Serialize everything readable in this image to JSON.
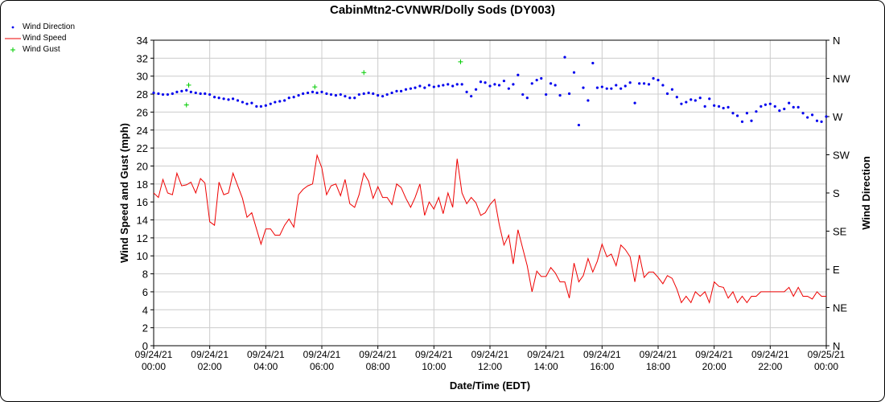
{
  "chart_data": {
    "type": "line",
    "title": "CabinMtn2-CVNWR/Dolly Sods (DY003)",
    "xlabel": "Date/Time (EDT)",
    "ylabel": "Wind Speed and Gust (mph)",
    "y2label": "Wind Direction",
    "xlim_hours": [
      0,
      24
    ],
    "x_ticks": [
      {
        "h": 0,
        "date": "09/24/21",
        "time": "00:00"
      },
      {
        "h": 2,
        "date": "09/24/21",
        "time": "02:00"
      },
      {
        "h": 4,
        "date": "09/24/21",
        "time": "04:00"
      },
      {
        "h": 6,
        "date": "09/24/21",
        "time": "06:00"
      },
      {
        "h": 8,
        "date": "09/24/21",
        "time": "08:00"
      },
      {
        "h": 10,
        "date": "09/24/21",
        "time": "10:00"
      },
      {
        "h": 12,
        "date": "09/24/21",
        "time": "12:00"
      },
      {
        "h": 14,
        "date": "09/24/21",
        "time": "14:00"
      },
      {
        "h": 16,
        "date": "09/24/21",
        "time": "16:00"
      },
      {
        "h": 18,
        "date": "09/24/21",
        "time": "18:00"
      },
      {
        "h": 20,
        "date": "09/24/21",
        "time": "20:00"
      },
      {
        "h": 22,
        "date": "09/24/21",
        "time": "22:00"
      },
      {
        "h": 24,
        "date": "09/25/21",
        "time": "00:00"
      }
    ],
    "ylim": [
      0,
      34
    ],
    "y_ticks": [
      0,
      2,
      4,
      6,
      8,
      10,
      12,
      14,
      16,
      18,
      20,
      22,
      24,
      26,
      28,
      30,
      32,
      34
    ],
    "y2_ticks": [
      {
        "label": "N",
        "deg": 0
      },
      {
        "label": "NE",
        "deg": 45
      },
      {
        "label": "E",
        "deg": 90
      },
      {
        "label": "SE",
        "deg": 135
      },
      {
        "label": "S",
        "deg": 180
      },
      {
        "label": "SW",
        "deg": 225
      },
      {
        "label": "W",
        "deg": 270
      },
      {
        "label": "NW",
        "deg": 315
      },
      {
        "label": "N",
        "deg": 360
      }
    ],
    "grid": true,
    "legend_position": "top-left",
    "series": [
      {
        "name": "Wind Direction",
        "kind": "points",
        "color": "#0000ee",
        "x": [
          0.0,
          0.17,
          0.33,
          0.5,
          0.67,
          0.83,
          1.0,
          1.17,
          1.33,
          1.5,
          1.67,
          1.83,
          2.0,
          2.17,
          2.33,
          2.5,
          2.67,
          2.83,
          3.0,
          3.17,
          3.33,
          3.5,
          3.67,
          3.83,
          4.0,
          4.17,
          4.33,
          4.5,
          4.67,
          4.83,
          5.0,
          5.17,
          5.33,
          5.5,
          5.67,
          5.83,
          6.0,
          6.17,
          6.33,
          6.5,
          6.67,
          6.83,
          7.0,
          7.17,
          7.33,
          7.5,
          7.67,
          7.83,
          8.0,
          8.17,
          8.33,
          8.5,
          8.67,
          8.83,
          9.0,
          9.17,
          9.33,
          9.5,
          9.67,
          9.83,
          10.0,
          10.17,
          10.33,
          10.5,
          10.67,
          10.83,
          11.0,
          11.17,
          11.33,
          11.5,
          11.67,
          11.83,
          12.0,
          12.17,
          12.33,
          12.5,
          12.67,
          12.83,
          13.0,
          13.17,
          13.33,
          13.5,
          13.67,
          13.83,
          14.0,
          14.17,
          14.33,
          14.5,
          14.67,
          14.83,
          15.0,
          15.17,
          15.33,
          15.5,
          15.67,
          15.83,
          16.0,
          16.17,
          16.33,
          16.5,
          16.67,
          16.83,
          17.0,
          17.17,
          17.33,
          17.5,
          17.67,
          17.83,
          18.0,
          18.17,
          18.33,
          18.5,
          18.67,
          18.83,
          19.0,
          19.17,
          19.33,
          19.5,
          19.67,
          19.83,
          20.0,
          20.17,
          20.33,
          20.5,
          20.67,
          20.83,
          21.0,
          21.17,
          21.33,
          21.5,
          21.67,
          21.83,
          22.0,
          22.17,
          22.33,
          22.5,
          22.67,
          22.83,
          23.0,
          23.17,
          23.33,
          23.5,
          23.67,
          23.83,
          24.0
        ],
        "y": [
          298,
          297,
          296,
          296,
          297,
          299,
          300,
          301,
          299,
          298,
          297,
          297,
          296,
          293,
          292,
          291,
          290,
          291,
          289,
          287,
          285,
          286,
          282,
          282,
          283,
          285,
          287,
          288,
          289,
          292,
          293,
          295,
          297,
          298,
          299,
          298,
          299,
          297,
          296,
          295,
          296,
          294,
          292,
          292,
          296,
          297,
          298,
          297,
          295,
          294,
          296,
          298,
          300,
          300,
          302,
          303,
          304,
          306,
          304,
          307,
          305,
          306,
          307,
          308,
          306,
          308,
          308,
          299,
          294,
          302,
          311,
          310,
          306,
          308,
          307,
          312,
          303,
          308,
          319,
          296,
          292,
          309,
          313,
          315,
          296,
          309,
          307,
          295,
          340,
          297,
          322,
          260,
          304,
          289,
          333,
          304,
          305,
          303,
          303,
          307,
          303,
          306,
          310,
          286,
          309,
          309,
          308,
          315,
          313,
          307,
          297,
          302,
          293,
          285,
          287,
          290,
          289,
          292,
          282,
          291,
          283,
          282,
          280,
          281,
          274,
          271,
          264,
          274,
          265,
          276,
          282,
          284,
          285,
          282,
          277,
          279,
          286,
          281,
          281,
          274,
          269,
          272,
          265,
          264,
          270
        ]
      },
      {
        "name": "Wind Speed",
        "kind": "line",
        "color": "#ee0000",
        "x": [
          0.0,
          0.17,
          0.33,
          0.5,
          0.67,
          0.83,
          1.0,
          1.17,
          1.33,
          1.5,
          1.67,
          1.83,
          2.0,
          2.17,
          2.33,
          2.5,
          2.67,
          2.83,
          3.0,
          3.17,
          3.33,
          3.5,
          3.67,
          3.83,
          4.0,
          4.17,
          4.33,
          4.5,
          4.67,
          4.83,
          5.0,
          5.17,
          5.33,
          5.5,
          5.67,
          5.83,
          6.0,
          6.17,
          6.33,
          6.5,
          6.67,
          6.83,
          7.0,
          7.17,
          7.33,
          7.5,
          7.67,
          7.83,
          8.0,
          8.17,
          8.33,
          8.5,
          8.67,
          8.83,
          9.0,
          9.17,
          9.33,
          9.5,
          9.67,
          9.83,
          10.0,
          10.17,
          10.33,
          10.5,
          10.67,
          10.83,
          11.0,
          11.17,
          11.33,
          11.5,
          11.67,
          11.83,
          12.0,
          12.17,
          12.33,
          12.5,
          12.67,
          12.83,
          13.0,
          13.17,
          13.33,
          13.5,
          13.67,
          13.83,
          14.0,
          14.17,
          14.33,
          14.5,
          14.67,
          14.83,
          15.0,
          15.17,
          15.33,
          15.5,
          15.67,
          15.83,
          16.0,
          16.17,
          16.33,
          16.5,
          16.67,
          16.83,
          17.0,
          17.17,
          17.33,
          17.5,
          17.67,
          17.83,
          18.0,
          18.17,
          18.33,
          18.5,
          18.67,
          18.83,
          19.0,
          19.17,
          19.33,
          19.5,
          19.67,
          19.83,
          20.0,
          20.17,
          20.33,
          20.5,
          20.67,
          20.83,
          21.0,
          21.17,
          21.33,
          21.5,
          21.67,
          21.83,
          22.0,
          22.17,
          22.33,
          22.5,
          22.67,
          22.83,
          23.0,
          23.17,
          23.33,
          23.5,
          23.67,
          23.83,
          24.0
        ],
        "y": [
          17.0,
          16.5,
          18.5,
          17.0,
          16.8,
          19.2,
          17.8,
          17.9,
          18.2,
          17.0,
          18.6,
          18.1,
          13.8,
          13.4,
          18.2,
          16.8,
          17.0,
          19.2,
          17.8,
          16.4,
          14.3,
          14.8,
          13.0,
          11.3,
          13.0,
          13.0,
          12.3,
          12.3,
          13.4,
          14.1,
          13.2,
          16.8,
          17.4,
          17.8,
          18.0,
          21.2,
          19.8,
          16.8,
          17.8,
          18.0,
          16.7,
          18.5,
          15.8,
          15.4,
          16.8,
          19.2,
          18.3,
          16.4,
          17.7,
          16.5,
          16.5,
          15.7,
          18.0,
          17.6,
          16.4,
          15.4,
          16.5,
          18.0,
          14.5,
          16.0,
          15.2,
          16.5,
          14.7,
          17.0,
          15.4,
          20.8,
          17.0,
          15.8,
          16.5,
          15.9,
          14.5,
          14.8,
          15.7,
          16.3,
          13.5,
          11.2,
          12.3,
          9.1,
          12.9,
          10.8,
          8.9,
          6.0,
          8.3,
          7.7,
          7.7,
          8.7,
          8.1,
          7.1,
          7.1,
          5.3,
          9.2,
          7.1,
          7.8,
          9.7,
          8.2,
          9.4,
          11.3,
          9.9,
          10.2,
          8.9,
          11.2,
          10.7,
          9.9,
          7.1,
          10.1,
          7.6,
          8.2,
          8.2,
          7.6,
          6.9,
          7.8,
          7.5,
          6.3,
          4.8,
          5.5,
          4.8,
          6.0,
          5.5,
          6.0,
          4.8,
          7.1,
          6.6,
          6.5,
          5.3,
          6.0,
          4.8,
          5.5,
          4.8,
          5.5,
          5.5,
          6.0,
          6.0,
          6.0,
          6.0,
          6.0,
          6.0,
          6.5,
          5.5,
          6.5,
          5.5,
          5.5,
          5.2,
          6.0,
          5.5,
          5.5
        ]
      },
      {
        "name": "Wind Gust",
        "kind": "plus",
        "color": "#00cc00",
        "x": [
          1.17,
          1.25,
          5.75,
          7.5,
          10.95
        ],
        "y": [
          26.8,
          29.0,
          28.8,
          30.4,
          31.6
        ]
      }
    ]
  }
}
